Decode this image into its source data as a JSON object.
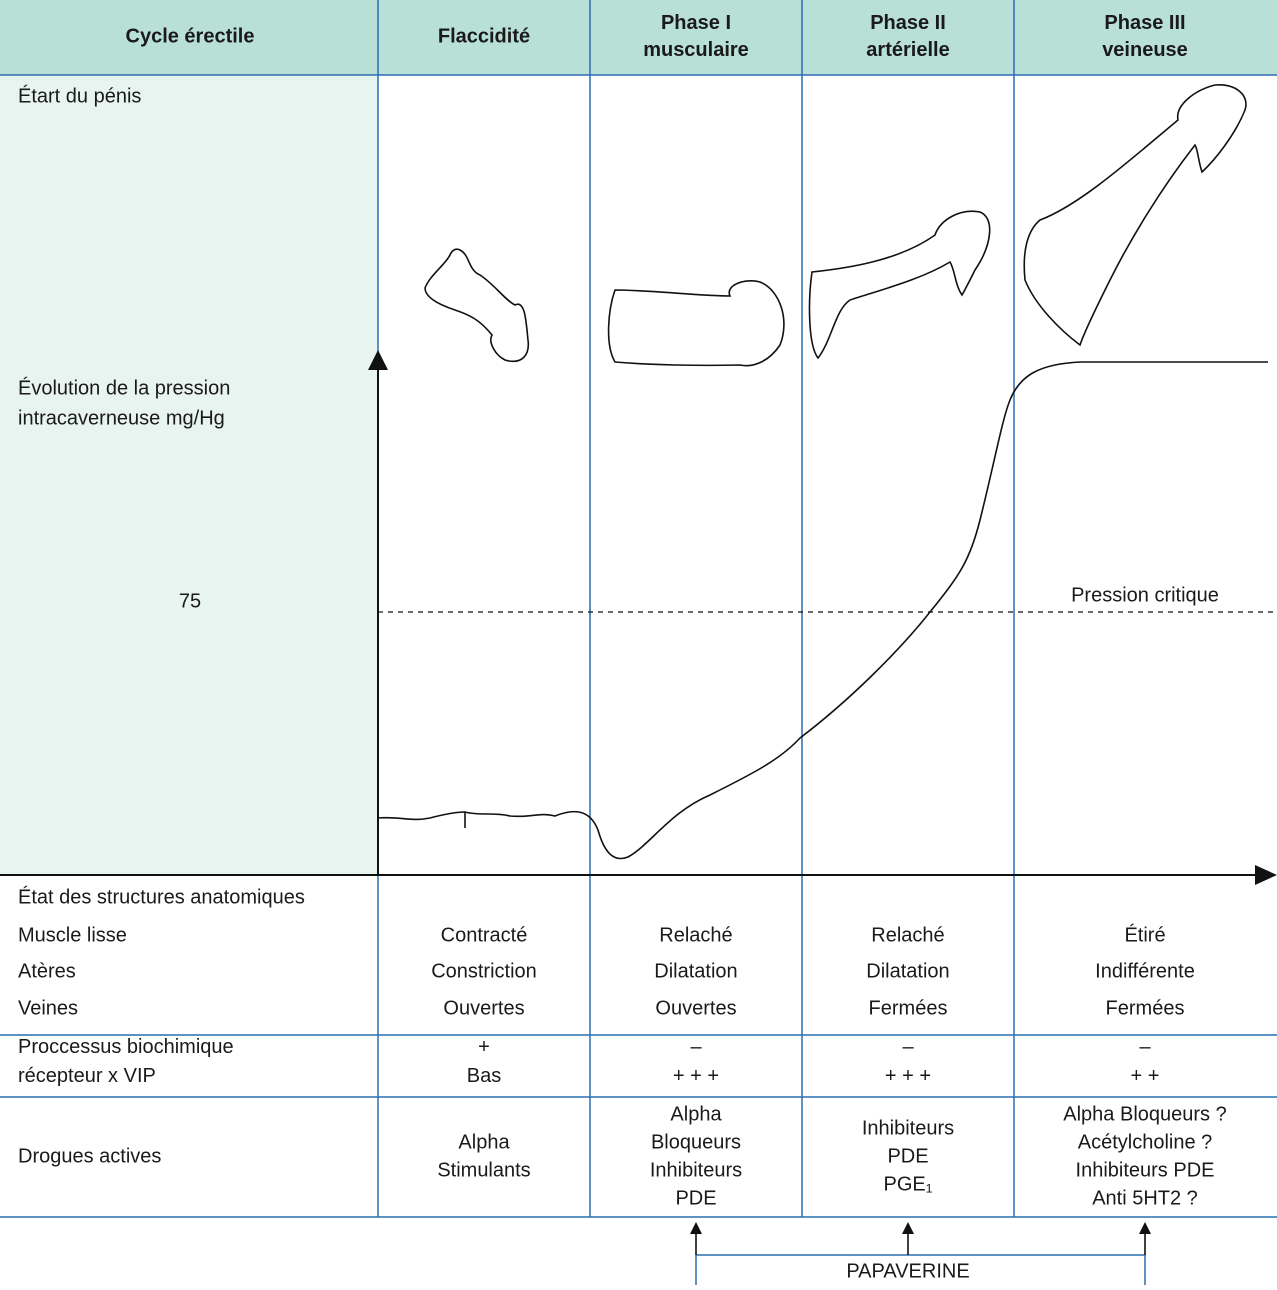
{
  "header": [
    [
      "Cycle érectile"
    ],
    [
      "Flaccidité"
    ],
    [
      "Phase I",
      "musculaire"
    ],
    [
      "Phase II",
      "artérielle"
    ],
    [
      "Phase III",
      "veineuse"
    ]
  ],
  "chart_area": {
    "penis_label": "Étart du pénis",
    "pressure_label": [
      "Évolution de la pression",
      "intracaverneuse mg/Hg"
    ],
    "pressure_value": "75",
    "critical_label": "Pression critique"
  },
  "anatomy": {
    "title": "État des structures anatomiques",
    "rows": [
      [
        "Muscle lisse",
        "Contracté",
        "Relaché",
        "Relaché",
        "Étiré"
      ],
      [
        "Atères",
        "Constriction",
        "Dilatation",
        "Dilatation",
        "Indifférente"
      ],
      [
        "Veines",
        "Ouvertes",
        "Ouvertes",
        "Fermées",
        "Fermées"
      ]
    ]
  },
  "biochem": {
    "label": [
      "Proccessus biochimique",
      "récepteur x VIP"
    ],
    "cells": [
      [
        "+",
        "Bas"
      ],
      [
        "–",
        "+ + +"
      ],
      [
        "–",
        "+ + +"
      ],
      [
        "–",
        "+ +"
      ]
    ]
  },
  "drugs": {
    "label": "Drogues actives",
    "cells": [
      [
        "Alpha",
        "Stimulants"
      ],
      [
        "Alpha",
        "Bloqueurs",
        "Inhibiteurs",
        "PDE"
      ],
      [
        "Inhibiteurs",
        "PDE",
        "PGE₁"
      ],
      [
        "Alpha Bloqueurs ?",
        "Acétylcholine ?",
        "Inhibiteurs PDE",
        "Anti 5HT2 ?"
      ]
    ]
  },
  "papaverine": "PAPAVERINE"
}
